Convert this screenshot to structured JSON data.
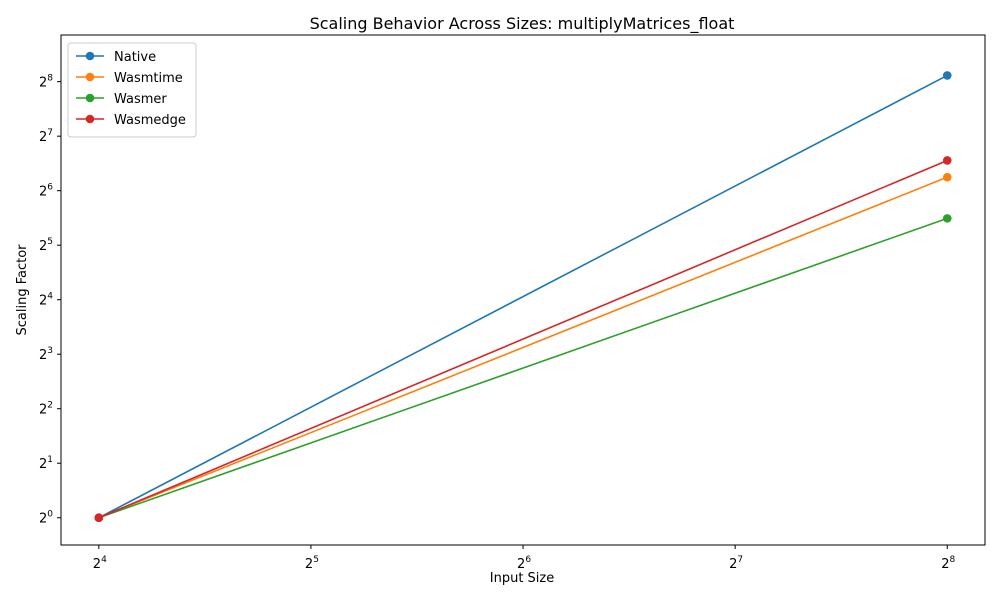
{
  "chart_data": {
    "type": "line",
    "title": "Scaling Behavior Across Sizes: multiplyMatrices_float",
    "xlabel": "Input Size",
    "ylabel": "Scaling Factor",
    "xscale": "log2",
    "yscale": "log2",
    "x": [
      16,
      256
    ],
    "xlim": [
      14.14,
      289.6
    ],
    "ylim": [
      0.707,
      463.4
    ],
    "xticks": [
      {
        "base": "2",
        "exp": "4",
        "value": 16
      },
      {
        "base": "2",
        "exp": "5",
        "value": 32
      },
      {
        "base": "2",
        "exp": "6",
        "value": 64
      },
      {
        "base": "2",
        "exp": "7",
        "value": 128
      },
      {
        "base": "2",
        "exp": "8",
        "value": 256
      }
    ],
    "yticks": [
      {
        "base": "2",
        "exp": "0",
        "value": 1
      },
      {
        "base": "2",
        "exp": "1",
        "value": 2
      },
      {
        "base": "2",
        "exp": "2",
        "value": 4
      },
      {
        "base": "2",
        "exp": "3",
        "value": 8
      },
      {
        "base": "2",
        "exp": "4",
        "value": 16
      },
      {
        "base": "2",
        "exp": "5",
        "value": 32
      },
      {
        "base": "2",
        "exp": "6",
        "value": 64
      },
      {
        "base": "2",
        "exp": "7",
        "value": 128
      },
      {
        "base": "2",
        "exp": "8",
        "value": 256
      }
    ],
    "series": [
      {
        "name": "Native",
        "color": "#1f77b4",
        "values": [
          1,
          277
        ]
      },
      {
        "name": "Wasmtime",
        "color": "#ff7f0e",
        "values": [
          1,
          76
        ]
      },
      {
        "name": "Wasmer",
        "color": "#2ca02c",
        "values": [
          1,
          45
        ]
      },
      {
        "name": "Wasmedge",
        "color": "#d62728",
        "values": [
          1,
          94
        ]
      }
    ],
    "legend": "top-left",
    "grid": false
  }
}
